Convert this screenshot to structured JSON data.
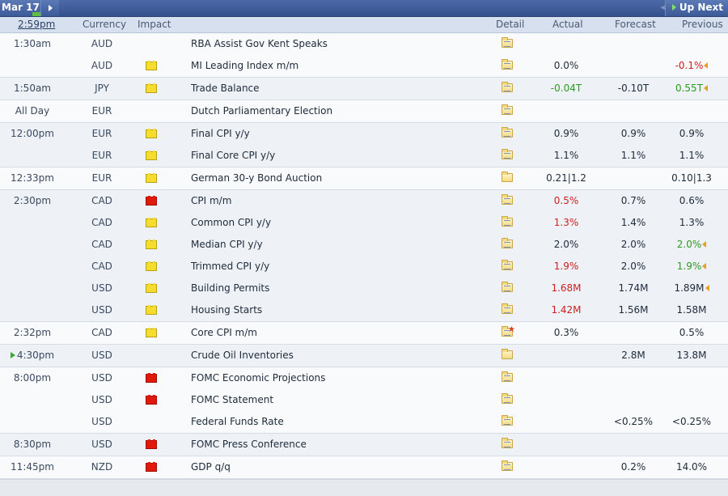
{
  "topbar": {
    "date": "Mar 17",
    "up_next": "Up Next"
  },
  "header": {
    "time": "2:59pm",
    "currency": "Currency",
    "impact": "Impact",
    "detail": "Detail",
    "actual": "Actual",
    "forecast": "Forecast",
    "previous": "Previous"
  },
  "groups": [
    {
      "rows": [
        {
          "time": "1:30am",
          "currency": "AUD",
          "impact": "medium",
          "event": "RBA Assist Gov Kent Speaks",
          "detail": "open",
          "actual": "",
          "actual_color": "black",
          "forecast": "",
          "previous": "",
          "previous_color": "black",
          "revised": false
        },
        {
          "time": "",
          "currency": "AUD",
          "impact": "low",
          "event": "MI Leading Index m/m",
          "detail": "open",
          "actual": "0.0%",
          "actual_color": "black",
          "forecast": "",
          "previous": "-0.1%",
          "previous_color": "red",
          "revised": true
        }
      ]
    },
    {
      "rows": [
        {
          "time": "1:50am",
          "currency": "JPY",
          "impact": "low",
          "event": "Trade Balance",
          "detail": "open",
          "actual": "-0.04T",
          "actual_color": "green",
          "forecast": "-0.10T",
          "previous": "0.55T",
          "previous_color": "green",
          "revised": true
        }
      ]
    },
    {
      "rows": [
        {
          "time": "All Day",
          "currency": "EUR",
          "impact": "medium",
          "event": "Dutch Parliamentary Election",
          "detail": "open",
          "actual": "",
          "actual_color": "black",
          "forecast": "",
          "previous": "",
          "previous_color": "black",
          "revised": false
        }
      ]
    },
    {
      "rows": [
        {
          "time": "12:00pm",
          "currency": "EUR",
          "impact": "low",
          "event": "Final CPI y/y",
          "detail": "open",
          "actual": "0.9%",
          "actual_color": "black",
          "forecast": "0.9%",
          "previous": "0.9%",
          "previous_color": "black",
          "revised": false
        },
        {
          "time": "",
          "currency": "EUR",
          "impact": "low",
          "event": "Final Core CPI y/y",
          "detail": "open",
          "actual": "1.1%",
          "actual_color": "black",
          "forecast": "1.1%",
          "previous": "1.1%",
          "previous_color": "black",
          "revised": false
        }
      ]
    },
    {
      "rows": [
        {
          "time": "12:33pm",
          "currency": "EUR",
          "impact": "low",
          "event": "German 30-y Bond Auction",
          "detail": "plain",
          "actual": "0.21|1.2",
          "actual_color": "black",
          "forecast": "",
          "previous": "0.10|1.3",
          "previous_color": "black",
          "revised": false
        }
      ]
    },
    {
      "rows": [
        {
          "time": "2:30pm",
          "currency": "CAD",
          "impact": "high",
          "event": "CPI m/m",
          "detail": "open",
          "actual": "0.5%",
          "actual_color": "red",
          "forecast": "0.7%",
          "previous": "0.6%",
          "previous_color": "black",
          "revised": false
        },
        {
          "time": "",
          "currency": "CAD",
          "impact": "low",
          "event": "Common CPI y/y",
          "detail": "open",
          "actual": "1.3%",
          "actual_color": "red",
          "forecast": "1.4%",
          "previous": "1.3%",
          "previous_color": "black",
          "revised": false
        },
        {
          "time": "",
          "currency": "CAD",
          "impact": "low",
          "event": "Median CPI y/y",
          "detail": "open",
          "actual": "2.0%",
          "actual_color": "black",
          "forecast": "2.0%",
          "previous": "2.0%",
          "previous_color": "green",
          "revised": true
        },
        {
          "time": "",
          "currency": "CAD",
          "impact": "low",
          "event": "Trimmed CPI y/y",
          "detail": "open",
          "actual": "1.9%",
          "actual_color": "red",
          "forecast": "2.0%",
          "previous": "1.9%",
          "previous_color": "green",
          "revised": true
        },
        {
          "time": "",
          "currency": "USD",
          "impact": "low",
          "event": "Building Permits",
          "detail": "open",
          "actual": "1.68M",
          "actual_color": "red",
          "forecast": "1.74M",
          "previous": "1.89M",
          "previous_color": "black",
          "revised": true
        },
        {
          "time": "",
          "currency": "USD",
          "impact": "low",
          "event": "Housing Starts",
          "detail": "open",
          "actual": "1.42M",
          "actual_color": "red",
          "forecast": "1.56M",
          "previous": "1.58M",
          "previous_color": "black",
          "revised": false
        }
      ]
    },
    {
      "rows": [
        {
          "time": "2:32pm",
          "currency": "CAD",
          "impact": "low",
          "event": "Core CPI m/m",
          "detail": "starred",
          "actual": "0.3%",
          "actual_color": "black",
          "forecast": "",
          "previous": "0.5%",
          "previous_color": "black",
          "revised": false
        }
      ]
    },
    {
      "rows": [
        {
          "time": "4:30pm",
          "current": true,
          "currency": "USD",
          "impact": "medium",
          "event": "Crude Oil Inventories",
          "detail": "plain",
          "actual": "",
          "actual_color": "black",
          "forecast": "2.8M",
          "previous": "13.8M",
          "previous_color": "black",
          "revised": false
        }
      ]
    },
    {
      "rows": [
        {
          "time": "8:00pm",
          "currency": "USD",
          "impact": "high",
          "event": "FOMC Economic Projections",
          "detail": "open",
          "actual": "",
          "actual_color": "black",
          "forecast": "",
          "previous": "",
          "previous_color": "black",
          "revised": false
        },
        {
          "time": "",
          "currency": "USD",
          "impact": "high",
          "event": "FOMC Statement",
          "detail": "open",
          "actual": "",
          "actual_color": "black",
          "forecast": "",
          "previous": "",
          "previous_color": "black",
          "revised": false
        },
        {
          "time": "",
          "currency": "USD",
          "impact": "medium",
          "event": "Federal Funds Rate",
          "detail": "open",
          "actual": "",
          "actual_color": "black",
          "forecast": "<0.25%",
          "previous": "<0.25%",
          "previous_color": "black",
          "revised": false
        }
      ]
    },
    {
      "rows": [
        {
          "time": "8:30pm",
          "currency": "USD",
          "impact": "high",
          "event": "FOMC Press Conference",
          "detail": "open",
          "actual": "",
          "actual_color": "black",
          "forecast": "",
          "previous": "",
          "previous_color": "black",
          "revised": false
        }
      ]
    },
    {
      "rows": [
        {
          "time": "11:45pm",
          "currency": "NZD",
          "impact": "high",
          "event": "GDP q/q",
          "detail": "open",
          "actual": "",
          "actual_color": "black",
          "forecast": "0.2%",
          "previous": "14.0%",
          "previous_color": "black",
          "revised": false
        }
      ]
    }
  ]
}
